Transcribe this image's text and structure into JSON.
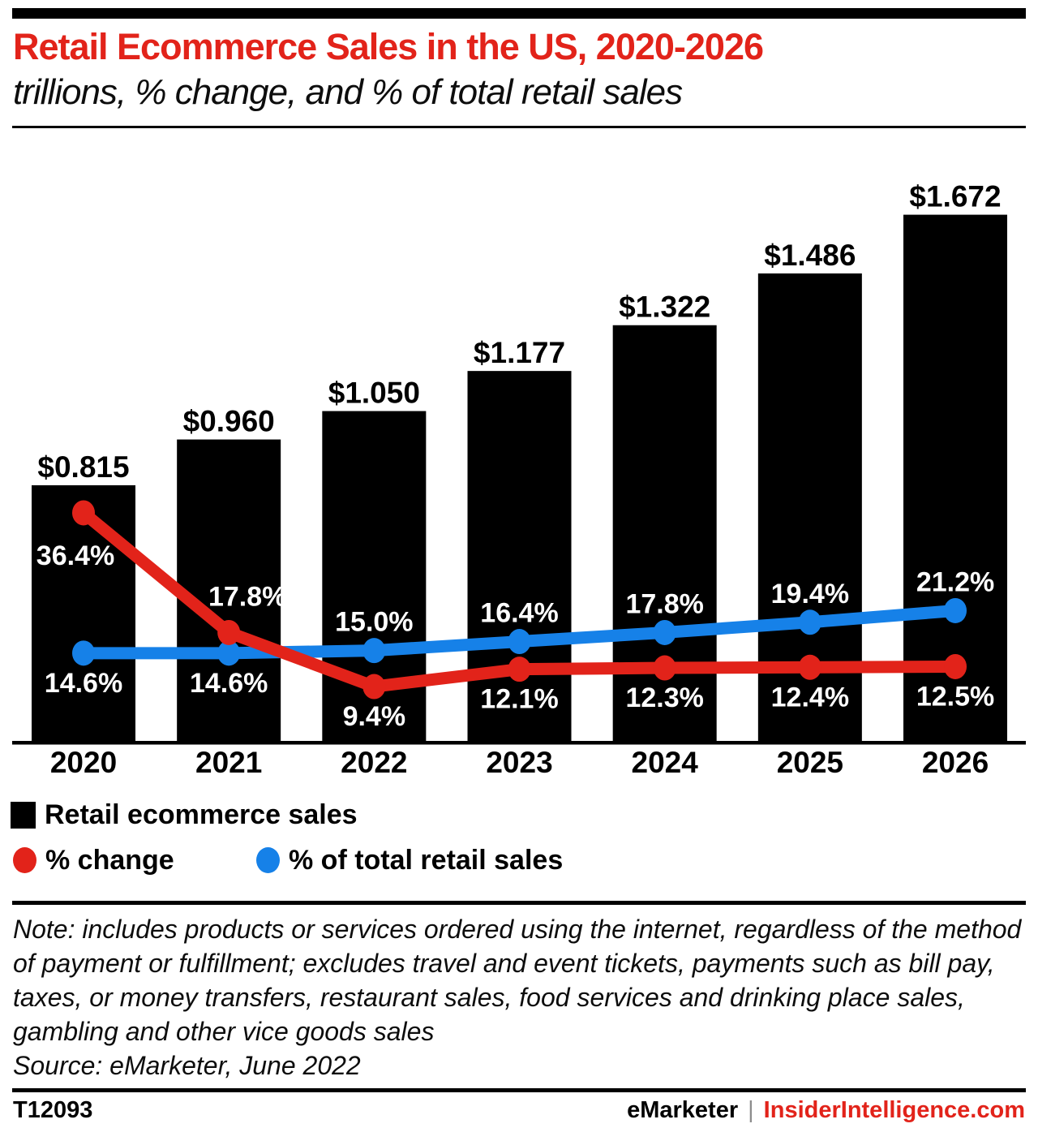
{
  "header": {
    "title": "Retail Ecommerce Sales in the US, 2020-2026",
    "subtitle": "trillions, % change, and % of total retail sales"
  },
  "colors": {
    "red": "#e2231a",
    "blue": "#1681e8",
    "black": "#000000",
    "white": "#ffffff"
  },
  "chart_data": {
    "type": "bar+line",
    "categories": [
      "2020",
      "2021",
      "2022",
      "2023",
      "2024",
      "2025",
      "2026"
    ],
    "bar_series": {
      "name": "Retail ecommerce sales",
      "unit": "trillions of US dollars",
      "values": [
        0.815,
        0.96,
        1.05,
        1.177,
        1.322,
        1.486,
        1.672
      ],
      "labels": [
        "$0.815",
        "$0.960",
        "$1.050",
        "$1.177",
        "$1.322",
        "$1.486",
        "$1.672"
      ],
      "color": "#000000"
    },
    "line_series": [
      {
        "name": "% change",
        "values": [
          36.4,
          17.8,
          9.4,
          12.1,
          12.3,
          12.4,
          12.5
        ],
        "labels": [
          "36.4%",
          "17.8%",
          "9.4%",
          "12.1%",
          "12.3%",
          "12.4%",
          "12.5%"
        ],
        "color": "#e2231a",
        "label_positions": [
          "below-left",
          "above-right",
          "below",
          "below",
          "below",
          "below",
          "below"
        ]
      },
      {
        "name": "% of total retail sales",
        "values": [
          14.6,
          14.6,
          15.0,
          16.4,
          17.8,
          19.4,
          21.2
        ],
        "labels": [
          "14.6%",
          "14.6%",
          "15.0%",
          "16.4%",
          "17.8%",
          "19.4%",
          "21.2%"
        ],
        "color": "#1681e8",
        "label_positions": [
          "below",
          "below",
          "above",
          "above",
          "above",
          "above",
          "above"
        ]
      }
    ],
    "ylim_bars": [
      0,
      1.9
    ],
    "ylim_pct": [
      0,
      40
    ],
    "grid": false,
    "y_axis_shown": false,
    "legend_position": "bottom-left"
  },
  "note": {
    "text": "Note: includes products or services ordered using the internet, regardless of the method of payment or fulfillment; excludes travel and event tickets, payments such as bill pay, taxes, or money transfers, restaurant sales, food services and drinking place sales, gambling and other vice goods sales",
    "source": "Source: eMarketer, June 2022"
  },
  "footer": {
    "id": "T12093",
    "brand": "eMarketer",
    "separator": "|",
    "site": "InsiderIntelligence.com"
  }
}
